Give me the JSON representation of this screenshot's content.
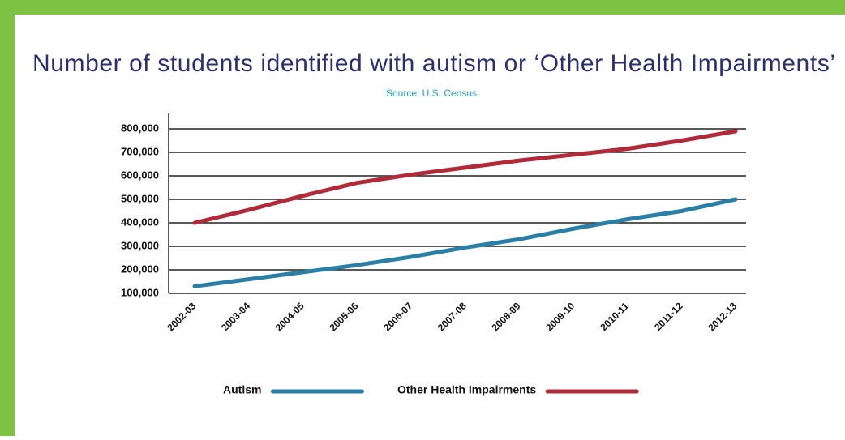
{
  "chart_data": {
    "type": "line",
    "title": "Number of students identified with autism or ‘Other Health Impairments’",
    "subtitle": "Source: U.S. Census",
    "categories": [
      "2002-03",
      "2003-04",
      "2004-05",
      "2005-06",
      "2006-07",
      "2007-08",
      "2008-09",
      "2009-10",
      "2010-11",
      "2011-12",
      "2012-13"
    ],
    "series": [
      {
        "name": "Autism",
        "color": "#2b7ea6",
        "values": [
          130000,
          160000,
          190000,
          220000,
          255000,
          295000,
          330000,
          375000,
          415000,
          450000,
          500000
        ]
      },
      {
        "name": "Other Health Impairments",
        "color": "#b12a3a",
        "values": [
          400000,
          455000,
          515000,
          570000,
          605000,
          635000,
          665000,
          690000,
          715000,
          750000,
          790000
        ]
      }
    ],
    "ylim": [
      100000,
      800000
    ],
    "yticks": [
      {
        "value": 100000,
        "label": "100,000"
      },
      {
        "value": 200000,
        "label": "200,000"
      },
      {
        "value": 300000,
        "label": "300,000"
      },
      {
        "value": 400000,
        "label": "400,000"
      },
      {
        "value": 500000,
        "label": "500,000"
      },
      {
        "value": 600000,
        "label": "600,000"
      },
      {
        "value": 700000,
        "label": "700,000"
      },
      {
        "value": 800000,
        "label": "800,000"
      }
    ],
    "grid": true
  }
}
